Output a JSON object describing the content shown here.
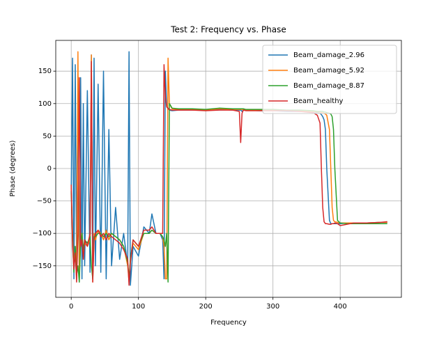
{
  "chart_data": {
    "type": "line",
    "title": "Test 2: Frequency vs. Phase",
    "xlabel": "Frequency",
    "ylabel": "Phase (degrees)",
    "x": [
      0,
      2,
      4,
      6,
      8,
      10,
      12,
      14,
      16,
      18,
      20,
      24,
      28,
      30,
      32,
      34,
      36,
      40,
      44,
      48,
      52,
      56,
      60,
      66,
      72,
      78,
      84,
      86,
      88,
      92,
      100,
      108,
      116,
      120,
      126,
      132,
      136,
      138,
      140,
      142,
      144,
      146,
      150,
      160,
      180,
      200,
      220,
      240,
      250,
      252,
      254,
      256,
      260,
      280,
      300,
      320,
      340,
      360,
      366,
      370,
      372,
      374,
      376,
      378,
      380,
      384,
      386,
      388,
      390,
      392,
      396,
      400,
      410,
      420,
      440,
      460,
      470
    ],
    "series": [
      {
        "name": "Beam_damage_2.96",
        "color": "#1f77b4",
        "values": [
          -40,
          170,
          -170,
          160,
          -150,
          120,
          -175,
          140,
          -170,
          100,
          -150,
          120,
          -160,
          175,
          -170,
          170,
          -150,
          130,
          -160,
          150,
          -170,
          60,
          -150,
          -60,
          -140,
          -100,
          -150,
          180,
          -180,
          -120,
          -135,
          -90,
          -100,
          -70,
          -100,
          -100,
          -110,
          -170,
          150,
          95,
          92,
          90,
          89,
          90,
          90,
          90,
          91,
          90,
          90,
          90,
          88,
          90,
          90,
          89,
          89,
          88,
          88,
          87,
          86,
          85,
          83,
          80,
          75,
          60,
          0,
          -80,
          -85,
          -85,
          -85,
          -85,
          -85,
          -85,
          -84,
          -84,
          -84,
          -83,
          -83
        ]
      },
      {
        "name": "Beam_damage_5.92",
        "color": "#ff7f0e",
        "values": [
          -30,
          -100,
          -150,
          -120,
          -170,
          180,
          -170,
          -110,
          -100,
          -130,
          -115,
          -120,
          -110,
          175,
          -175,
          -100,
          -110,
          -95,
          -100,
          -110,
          -95,
          -110,
          -100,
          -105,
          -110,
          -120,
          -150,
          -175,
          -140,
          -115,
          -125,
          -100,
          -100,
          -95,
          -100,
          -100,
          -105,
          -120,
          -170,
          -170,
          170,
          100,
          92,
          91,
          91,
          90,
          92,
          91,
          91,
          91,
          91,
          91,
          90,
          90,
          90,
          89,
          89,
          88,
          87,
          87,
          86,
          86,
          85,
          84,
          82,
          60,
          0,
          -60,
          -80,
          -82,
          -83,
          -84,
          -84,
          -84,
          -84,
          -83,
          -83
        ]
      },
      {
        "name": "Beam_damage_8.87",
        "color": "#2ca02c",
        "values": [
          -35,
          -110,
          -160,
          -120,
          -165,
          -150,
          -175,
          -115,
          -100,
          -125,
          -110,
          -115,
          -105,
          -150,
          -170,
          -105,
          -105,
          -100,
          -100,
          -105,
          -100,
          -105,
          -100,
          -105,
          -110,
          -120,
          -145,
          -170,
          -140,
          -110,
          -120,
          -100,
          -100,
          -95,
          -100,
          -100,
          -105,
          -110,
          -120,
          -100,
          -175,
          100,
          93,
          92,
          92,
          91,
          93,
          92,
          92,
          92,
          92,
          92,
          91,
          91,
          91,
          90,
          90,
          89,
          88,
          88,
          88,
          88,
          87,
          87,
          86,
          85,
          84,
          80,
          60,
          0,
          -80,
          -84,
          -85,
          -85,
          -85,
          -85,
          -85
        ]
      },
      {
        "name": "Beam_healthy",
        "color": "#d62728",
        "values": [
          -25,
          -120,
          -155,
          -130,
          -175,
          -100,
          140,
          -120,
          -110,
          -140,
          -110,
          -120,
          -100,
          165,
          -175,
          -110,
          -100,
          -95,
          -105,
          -100,
          -110,
          -100,
          -105,
          -110,
          -115,
          -125,
          -140,
          -180,
          -145,
          -110,
          -120,
          -95,
          -95,
          -90,
          -100,
          -100,
          -100,
          160,
          110,
          95,
          93,
          91,
          90,
          90,
          90,
          89,
          90,
          90,
          88,
          40,
          85,
          90,
          89,
          89,
          89,
          89,
          88,
          86,
          82,
          70,
          0,
          -60,
          -82,
          -85,
          -85,
          -86,
          -86,
          -85,
          -85,
          -84,
          -85,
          -88,
          -86,
          -84,
          -84,
          -83,
          -82
        ]
      }
    ],
    "xlim": [
      -23,
      491
    ],
    "ylim": [
      -198.5,
      197.4
    ],
    "xticks": [
      0,
      100,
      200,
      300,
      400
    ],
    "yticks": [
      {
        "value": -150,
        "label": "−150"
      },
      {
        "value": -100,
        "label": "−100"
      },
      {
        "value": -50,
        "label": "−50"
      },
      0,
      50,
      100,
      150
    ],
    "grid": true,
    "legend": "upper-right"
  }
}
